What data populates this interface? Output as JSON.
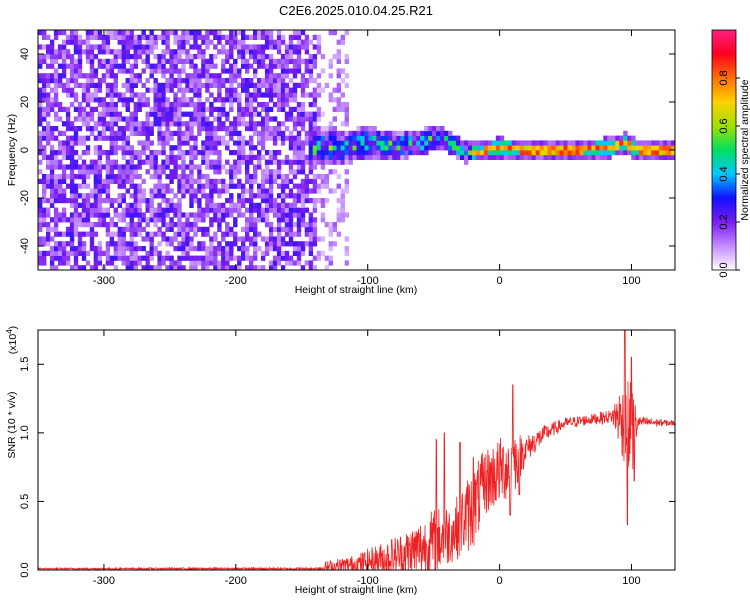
{
  "chart_data": [
    {
      "type": "heatmap",
      "title": "C2E6.2025.010.04.25.R21",
      "xlabel": "Height of straight line (km)",
      "ylabel": "Frequency (Hz)",
      "xlim": [
        -350,
        133
      ],
      "ylim": [
        -50,
        50
      ],
      "x_ticks": [
        -300,
        -200,
        -100,
        0,
        100
      ],
      "x_tick_labels": [
        "-300",
        "-200",
        "-100",
        "0",
        "100"
      ],
      "y_ticks": [
        -40,
        -20,
        0,
        20,
        40
      ],
      "y_tick_labels": [
        "-40",
        "-20",
        "0",
        "20",
        "40"
      ],
      "colorbar": {
        "label": "Normalized spectral amplitude",
        "range": [
          0,
          1
        ],
        "ticks": [
          0.0,
          0.2,
          0.4,
          0.6,
          0.8
        ],
        "tick_labels": [
          "0.0",
          "0.2",
          "0.4",
          "0.6",
          "0.8"
        ],
        "colors": [
          "#ffffff",
          "#c48bff",
          "#7a1cf0",
          "#1010ff",
          "#00c8ff",
          "#00e060",
          "#a0e000",
          "#ffd000",
          "#ff7000",
          "#ff0020",
          "#ff2080"
        ]
      },
      "noise_region_x": [
        -350,
        -140
      ],
      "signal_center_track": [
        {
          "x": -140,
          "f": 2
        },
        {
          "x": -120,
          "f": 1
        },
        {
          "x": -100,
          "f": 3
        },
        {
          "x": -80,
          "f": 2
        },
        {
          "x": -60,
          "f": 3
        },
        {
          "x": -45,
          "f": 6
        },
        {
          "x": -35,
          "f": 2
        },
        {
          "x": -25,
          "f": -1
        },
        {
          "x": -10,
          "f": 0
        },
        {
          "x": 0,
          "f": 1
        },
        {
          "x": 20,
          "f": 0
        },
        {
          "x": 60,
          "f": 0
        },
        {
          "x": 85,
          "f": 1
        },
        {
          "x": 95,
          "f": 3
        },
        {
          "x": 105,
          "f": 0
        },
        {
          "x": 133,
          "f": 0
        }
      ]
    },
    {
      "type": "line",
      "xlabel": "Height of straight line (km)",
      "ylabel": "SNR (10 * v/v)",
      "y_multiplier_label": "(x10",
      "y_multiplier_exp": "4",
      "y_multiplier_close": ")",
      "xlim": [
        -350,
        133
      ],
      "ylim": [
        0,
        1.75
      ],
      "x_ticks": [
        -300,
        -200,
        -100,
        0,
        100
      ],
      "x_tick_labels": [
        "-300",
        "-200",
        "-100",
        "0",
        "100"
      ],
      "y_ticks": [
        0.0,
        0.5,
        1.0,
        1.5
      ],
      "y_tick_labels": [
        "0.0",
        "0.5",
        "1.0",
        "1.5"
      ],
      "line_color": "#ee2222",
      "series": [
        {
          "envelope": [
            {
              "x": -350,
              "base": 0.01,
              "amp": 0.005
            },
            {
              "x": -140,
              "base": 0.01,
              "amp": 0.008
            },
            {
              "x": -130,
              "base": 0.02,
              "amp": 0.05
            },
            {
              "x": -110,
              "base": 0.04,
              "amp": 0.07
            },
            {
              "x": -90,
              "base": 0.08,
              "amp": 0.12
            },
            {
              "x": -70,
              "base": 0.12,
              "amp": 0.18
            },
            {
              "x": -50,
              "base": 0.2,
              "amp": 0.25
            },
            {
              "x": -35,
              "base": 0.28,
              "amp": 0.22
            },
            {
              "x": -20,
              "base": 0.45,
              "amp": 0.3
            },
            {
              "x": -10,
              "base": 0.65,
              "amp": 0.25
            },
            {
              "x": 0,
              "base": 0.72,
              "amp": 0.25
            },
            {
              "x": 10,
              "base": 0.78,
              "amp": 0.25
            },
            {
              "x": 20,
              "base": 0.88,
              "amp": 0.1
            },
            {
              "x": 35,
              "base": 1.0,
              "amp": 0.06
            },
            {
              "x": 50,
              "base": 1.07,
              "amp": 0.04
            },
            {
              "x": 70,
              "base": 1.1,
              "amp": 0.04
            },
            {
              "x": 85,
              "base": 1.12,
              "amp": 0.05
            },
            {
              "x": 90,
              "base": 1.12,
              "amp": 0.2
            },
            {
              "x": 100,
              "base": 1.0,
              "amp": 0.4
            },
            {
              "x": 105,
              "base": 1.08,
              "amp": 0.04
            },
            {
              "x": 133,
              "base": 1.07,
              "amp": 0.02
            }
          ],
          "peaks": [
            {
              "x": -48,
              "y": 0.95
            },
            {
              "x": -42,
              "y": 1.0
            },
            {
              "x": -30,
              "y": 0.93
            },
            {
              "x": -20,
              "y": 0.82
            },
            {
              "x": 10,
              "y": 1.35
            },
            {
              "x": 8,
              "y": 0.4
            },
            {
              "x": 15,
              "y": 0.55
            },
            {
              "x": 95,
              "y": 1.75
            },
            {
              "x": 97,
              "y": 0.33
            },
            {
              "x": 100,
              "y": 1.55
            },
            {
              "x": 102,
              "y": 0.65
            }
          ]
        }
      ]
    }
  ]
}
